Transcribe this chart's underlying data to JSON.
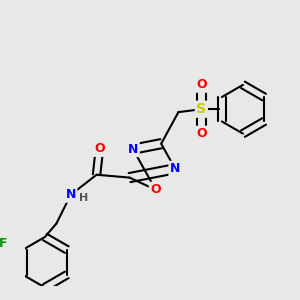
{
  "bg_color": "#e8e8e8",
  "bond_color": "#000000",
  "bond_width": 1.5,
  "atom_colors": {
    "O": "#ff0000",
    "N": "#0000ff",
    "S": "#cccc00",
    "F": "#009900",
    "C": "#000000",
    "H": "#555555"
  },
  "font_size": 9,
  "fig_size": [
    3.0,
    3.0
  ],
  "dpi": 100
}
